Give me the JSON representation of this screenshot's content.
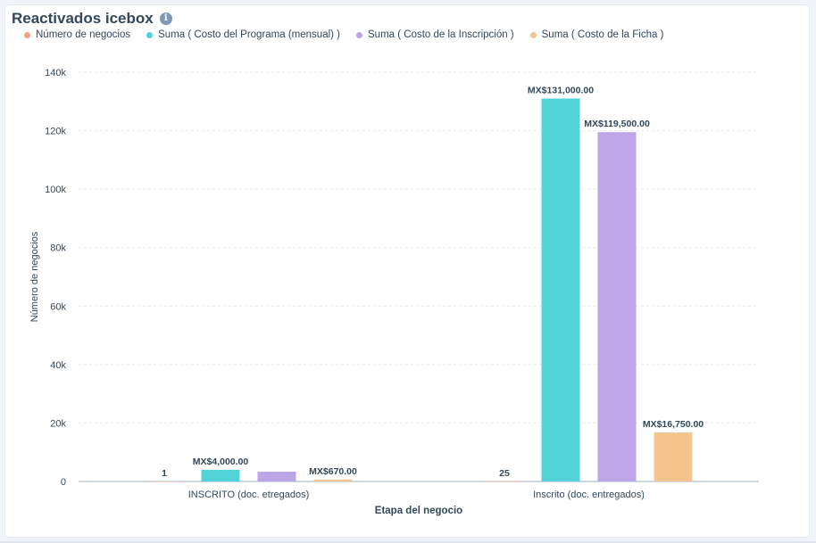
{
  "widget": {
    "title": "Reactivados icebox",
    "info_icon": "info-icon"
  },
  "colors": {
    "series": [
      "#f2a080",
      "#51d3d9",
      "#bda6e8",
      "#f5c48e"
    ],
    "axis": "#cbd6e2",
    "text": "#33475b"
  },
  "chart_data": {
    "type": "bar",
    "title": "Reactivados icebox",
    "xlabel": "Etapa del negocio",
    "ylabel": "Número de negocios",
    "categories": [
      "INSCRITO (doc. etregados)",
      "Inscrito (doc. entregados)"
    ],
    "series": [
      {
        "name": "Número de negocios",
        "values": [
          1,
          25
        ],
        "labels": [
          "1",
          "25"
        ]
      },
      {
        "name": "Suma ( Costo del Programa (mensual) )",
        "values": [
          4000,
          131000
        ],
        "labels": [
          "MX$4,000.00",
          "MX$131,000.00"
        ]
      },
      {
        "name": "Suma ( Costo de la Inscripción )",
        "values": [
          3350,
          119500
        ],
        "labels": [
          "",
          "MX$119,500.00"
        ]
      },
      {
        "name": "Suma ( Costo de la Ficha )",
        "values": [
          670,
          16750
        ],
        "labels": [
          "MX$670.00",
          "MX$16,750.00"
        ]
      }
    ],
    "ylim": [
      0,
      140000
    ],
    "yticks": [
      0,
      20000,
      40000,
      60000,
      80000,
      100000,
      120000,
      140000
    ],
    "ytick_labels": [
      "0",
      "20k",
      "40k",
      "60k",
      "80k",
      "100k",
      "120k",
      "140k"
    ],
    "grid": true,
    "legend_position": "top-left"
  }
}
